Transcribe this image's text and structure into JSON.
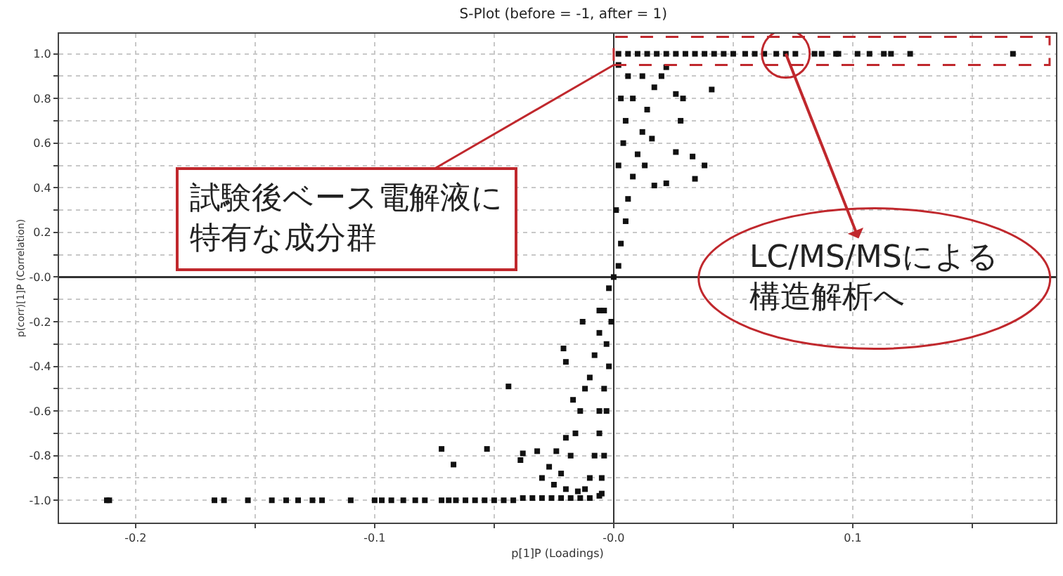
{
  "chart_data": {
    "type": "scatter",
    "title": "S-Plot (before = -1, after = 1)",
    "xlabel": "p[1]P (Loadings)",
    "ylabel": "p(corr)[1]P (Correlation)",
    "xlim": [
      -0.232,
      0.185
    ],
    "ylim": [
      -1.1,
      1.09
    ],
    "xticks": [
      {
        "value": -0.2,
        "label": "-0.2"
      },
      {
        "value": -0.15,
        "label": null
      },
      {
        "value": -0.1,
        "label": "-0.1"
      },
      {
        "value": -0.05,
        "label": null
      },
      {
        "value": 0,
        "label": "-0.0"
      },
      {
        "value": 0.05,
        "label": null
      },
      {
        "value": 0.1,
        "label": "0.1"
      },
      {
        "value": 0.15,
        "label": null
      }
    ],
    "yticks": [
      {
        "value": 1,
        "label": "1.0"
      },
      {
        "value": 0.9,
        "label": null
      },
      {
        "value": 0.8,
        "label": "0.8"
      },
      {
        "value": 0.7,
        "label": null
      },
      {
        "value": 0.6,
        "label": "0.6"
      },
      {
        "value": 0.5,
        "label": null
      },
      {
        "value": 0.4,
        "label": "0.4"
      },
      {
        "value": 0.3,
        "label": null
      },
      {
        "value": 0.2,
        "label": "0.2"
      },
      {
        "value": 0.1,
        "label": null
      },
      {
        "value": 0,
        "label": "-0.0"
      },
      {
        "value": -0.1,
        "label": null
      },
      {
        "value": -0.2,
        "label": "-0.2"
      },
      {
        "value": -0.3,
        "label": null
      },
      {
        "value": -0.4,
        "label": "-0.4"
      },
      {
        "value": -0.5,
        "label": null
      },
      {
        "value": -0.6,
        "label": "-0.6"
      },
      {
        "value": -0.7,
        "label": null
      },
      {
        "value": -0.8,
        "label": "-0.8"
      },
      {
        "value": -0.9,
        "label": null
      },
      {
        "value": -1,
        "label": "-1.0"
      }
    ],
    "grid": true,
    "marker": "square",
    "annotations": [
      {
        "text": "試験後ベース電解液に特有な成分群",
        "x": 0,
        "y": 0.95
      },
      {
        "text": "LC/MS/MSによる構造解析へ",
        "x": 0.072,
        "y": 1.0
      }
    ],
    "series": [
      {
        "color": "#111111",
        "x": [
          -0.212,
          -0.211,
          -0.167,
          -0.163,
          -0.153,
          -0.143,
          -0.137,
          -0.132,
          -0.126,
          -0.122,
          -0.11,
          -0.1,
          -0.097,
          -0.093,
          -0.088,
          -0.083,
          -0.079,
          -0.072,
          -0.069,
          -0.066,
          -0.062,
          -0.058,
          -0.054,
          -0.05,
          -0.046,
          -0.042,
          -0.038,
          -0.034,
          -0.03,
          -0.026,
          -0.022,
          -0.018,
          -0.014,
          -0.01,
          -0.006,
          -0.072,
          -0.067,
          -0.053,
          -0.044,
          -0.039,
          -0.038,
          -0.032,
          -0.021,
          -0.02,
          -0.013,
          -0.006,
          -0.03,
          -0.025,
          -0.02,
          -0.015,
          -0.027,
          -0.022,
          -0.018,
          -0.02,
          -0.016,
          -0.014,
          -0.012,
          -0.01,
          -0.008,
          -0.006,
          -0.004,
          -0.002,
          0,
          -0.01,
          -0.005,
          -0.008,
          -0.004,
          -0.006,
          -0.003,
          -0.006,
          -0.004,
          -0.002,
          -0.003,
          -0.001,
          -0.012,
          -0.005,
          -0.024,
          -0.017,
          0.002,
          0.003,
          0.005,
          0.006,
          0.008,
          0.01,
          0.012,
          0.014,
          0.017,
          0.02,
          0.022,
          0.001,
          0.002,
          0.004,
          0.005,
          0.003,
          0.008,
          0.006,
          0.012,
          0.002,
          0.016,
          0.013,
          0.002,
          0.006,
          0.01,
          0.014,
          0.018,
          0.022,
          0.026,
          0.03,
          0.034,
          0.038,
          0.042,
          0.046,
          0.05,
          0.055,
          0.059,
          0.063,
          0.068,
          0.072,
          0.076,
          0.084,
          0.087,
          0.093,
          0.094,
          0.102,
          0.107,
          0.113,
          0.116,
          0.124,
          0.167,
          0.026,
          0.029,
          0.041,
          0.028,
          0.026,
          0.033,
          0.038,
          0.022,
          0.034,
          0.017
        ],
        "values": [
          -1,
          -1,
          -1,
          -1,
          -1,
          -1,
          -1,
          -1,
          -1,
          -1,
          -1,
          -1,
          -1,
          -1,
          -1,
          -1,
          -1,
          -1,
          -1,
          -1,
          -1,
          -1,
          -1,
          -1,
          -1,
          -1,
          -0.99,
          -0.99,
          -0.99,
          -0.99,
          -0.99,
          -0.99,
          -0.99,
          -0.99,
          -0.98,
          -0.77,
          -0.84,
          -0.77,
          -0.49,
          -0.82,
          -0.79,
          -0.78,
          -0.32,
          -0.38,
          -0.2,
          -0.15,
          -0.9,
          -0.93,
          -0.95,
          -0.96,
          -0.85,
          -0.88,
          -0.8,
          -0.72,
          -0.7,
          -0.6,
          -0.5,
          -0.45,
          -0.35,
          -0.25,
          -0.15,
          -0.05,
          0,
          -0.9,
          -0.9,
          -0.8,
          -0.8,
          -0.7,
          -0.6,
          -0.6,
          -0.5,
          -0.4,
          -0.3,
          -0.2,
          -0.95,
          -0.97,
          -0.78,
          -0.55,
          0.05,
          0.15,
          0.25,
          0.35,
          0.45,
          0.55,
          0.65,
          0.75,
          0.85,
          0.9,
          0.94,
          0.3,
          0.5,
          0.6,
          0.7,
          0.8,
          0.8,
          0.9,
          0.9,
          0.95,
          0.62,
          0.5,
          1,
          1,
          1,
          1,
          1,
          1,
          1,
          1,
          1,
          1,
          1,
          1,
          1,
          1,
          1,
          1,
          1,
          1,
          1,
          1,
          1,
          1,
          1,
          1,
          1,
          1,
          1,
          1,
          1,
          0.82,
          0.8,
          0.84,
          0.7,
          0.56,
          0.54,
          0.5,
          0.42,
          0.44,
          0.41
        ]
      }
    ]
  }
}
